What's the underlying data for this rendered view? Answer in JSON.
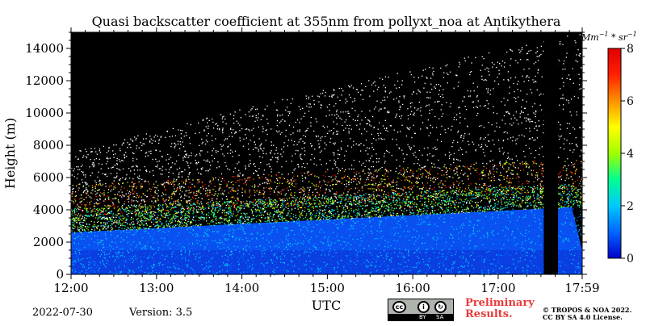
{
  "chart_data": {
    "type": "heatmap",
    "title": "Quasi backscatter coefficient at 355nm from pollyxt_noa at Antikythera",
    "xlabel": "UTC",
    "ylabel": "Height (m)",
    "x_tick_labels": [
      "12:00",
      "13:00",
      "14:00",
      "15:00",
      "16:00",
      "17:00",
      "17:59"
    ],
    "y_ticks": [
      0,
      2000,
      4000,
      6000,
      8000,
      10000,
      12000,
      14000
    ],
    "ylim": [
      0,
      15000
    ],
    "colorbar": {
      "unit_label": "Mm^-1 * sr^-1",
      "ticks": [
        0,
        2,
        4,
        6,
        8
      ],
      "range": [
        0,
        8
      ],
      "colormap": [
        "#0000cc",
        "#0066ff",
        "#00c8ff",
        "#00ff90",
        "#a0ff00",
        "#ffff00",
        "#ff9000",
        "#ff2000",
        "#e00000"
      ]
    },
    "gap_no_data": {
      "start": "17:32",
      "end": "17:42"
    },
    "layers_approx": [
      {
        "height_range_m": [
          0,
          1500
        ],
        "value_approx": 0.8
      },
      {
        "height_range_m": [
          1500,
          3500
        ],
        "value_approx": 0.5
      },
      {
        "height_range_m": [
          3500,
          5000
        ],
        "value_approx": 2.5
      },
      {
        "height_range_m": [
          5000,
          7000
        ],
        "value_approx": 5
      }
    ]
  },
  "footer": {
    "date": "2022-07-30",
    "version": "Version: 3.5",
    "cc_by": "BY",
    "cc_sa": "SA",
    "preliminary": "Preliminary\nResults.",
    "copyright": "© TROPOS & NOA 2022.\nCC BY SA 4.0 License."
  }
}
